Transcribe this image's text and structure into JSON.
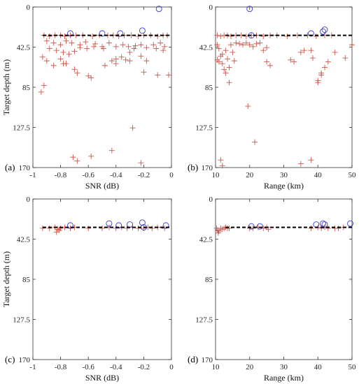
{
  "chart_data": [
    {
      "type": "scatter",
      "panel_label": "(a)",
      "xlabel": "SNR (dB)",
      "ylabel": "Target depth (m)",
      "xlim": [
        -1,
        0
      ],
      "ylim": [
        0,
        170
      ],
      "y_inverted": true,
      "xticks": [
        -1,
        -0.8,
        -0.6,
        -0.4,
        -0.2,
        0
      ],
      "xtick_labels": [
        "-1",
        "-0.8",
        "-0.6",
        "-0.4",
        "-0.2",
        "0"
      ],
      "yticks": [
        0,
        42.5,
        85,
        127.5,
        170
      ],
      "ytick_labels": [
        "0",
        "42.5",
        "85",
        "127.5",
        "170"
      ],
      "reference_line": 30,
      "grid": false,
      "series": [
        {
          "marker": "plus",
          "color": "#c0392b",
          "points": [
            [
              -0.92,
              30
            ],
            [
              -0.88,
              31
            ],
            [
              -0.84,
              30
            ],
            [
              -0.8,
              30
            ],
            [
              -0.77,
              31
            ],
            [
              -0.73,
              30
            ],
            [
              -0.69,
              30
            ],
            [
              -0.64,
              30
            ],
            [
              -0.57,
              31
            ],
            [
              -0.52,
              30
            ],
            [
              -0.46,
              30
            ],
            [
              -0.42,
              30
            ],
            [
              -0.38,
              31
            ],
            [
              -0.34,
              30
            ],
            [
              -0.29,
              30
            ],
            [
              -0.24,
              31
            ],
            [
              -0.2,
              30
            ],
            [
              -0.15,
              30
            ],
            [
              -0.1,
              31
            ],
            [
              -0.06,
              30
            ],
            [
              -0.03,
              30
            ],
            [
              -0.9,
              36
            ],
            [
              -0.85,
              38
            ],
            [
              -0.8,
              40
            ],
            [
              -0.76,
              36
            ],
            [
              -0.72,
              38
            ],
            [
              -0.66,
              40
            ],
            [
              -0.62,
              37
            ],
            [
              -0.55,
              39
            ],
            [
              -0.5,
              42
            ],
            [
              -0.45,
              38
            ],
            [
              -0.4,
              42
            ],
            [
              -0.35,
              40
            ],
            [
              -0.31,
              42
            ],
            [
              -0.26,
              41
            ],
            [
              -0.22,
              40
            ],
            [
              -0.18,
              43
            ],
            [
              -0.13,
              40
            ],
            [
              -0.08,
              38
            ],
            [
              -0.05,
              42
            ],
            [
              -0.88,
              44
            ],
            [
              -0.83,
              46
            ],
            [
              -0.78,
              48
            ],
            [
              -0.74,
              50
            ],
            [
              -0.7,
              47
            ],
            [
              -0.66,
              43
            ],
            [
              -0.61,
              44
            ],
            [
              -0.56,
              42
            ],
            [
              -0.49,
              44
            ],
            [
              -0.43,
              57
            ],
            [
              -0.4,
              55
            ],
            [
              -0.36,
              53
            ],
            [
              -0.33,
              56
            ],
            [
              -0.3,
              48
            ],
            [
              -0.27,
              44
            ],
            [
              -0.22,
              52
            ],
            [
              -0.18,
              57
            ],
            [
              -0.11,
              44
            ],
            [
              -0.06,
              46
            ],
            [
              -0.93,
              53
            ],
            [
              -0.9,
              57
            ],
            [
              -0.85,
              62
            ],
            [
              -0.8,
              55
            ],
            [
              -0.76,
              60
            ],
            [
              -0.7,
              66
            ],
            [
              -0.6,
              73
            ],
            [
              -0.58,
              75
            ],
            [
              -0.48,
              62
            ],
            [
              -0.4,
              60
            ],
            [
              -0.3,
              57
            ],
            [
              -0.2,
              69
            ],
            [
              -0.1,
              72
            ],
            [
              -0.02,
              72
            ],
            [
              -0.94,
              90
            ],
            [
              -0.78,
              60
            ],
            [
              -0.68,
              70
            ],
            [
              -0.28,
              128
            ],
            [
              -0.71,
              159
            ],
            [
              -0.68,
              163
            ],
            [
              -0.58,
              158
            ],
            [
              -0.43,
              152
            ],
            [
              -0.22,
              165
            ],
            [
              -0.92,
              83
            ]
          ]
        },
        {
          "marker": "circle",
          "color": "#3a3ad0",
          "points": [
            [
              -0.73,
              28
            ],
            [
              -0.5,
              28
            ],
            [
              -0.37,
              28
            ],
            [
              -0.21,
              25
            ],
            [
              -0.09,
              2
            ]
          ]
        }
      ]
    },
    {
      "type": "scatter",
      "panel_label": "(b)",
      "xlabel": "Range (km)",
      "ylabel": "",
      "xlim": [
        10,
        50
      ],
      "ylim": [
        0,
        170
      ],
      "y_inverted": true,
      "xticks": [
        10,
        20,
        30,
        40,
        50
      ],
      "xtick_labels": [
        "10",
        "20",
        "30",
        "40",
        "50"
      ],
      "yticks": [
        0,
        42.5,
        85,
        127.5,
        170
      ],
      "ytick_labels": [
        "0",
        "42.5",
        "85",
        "127.5",
        "170"
      ],
      "reference_line": 30,
      "grid": false,
      "series": [
        {
          "marker": "plus",
          "color": "#c0392b",
          "points": [
            [
              10.5,
              30
            ],
            [
              11.5,
              31
            ],
            [
              12.5,
              30
            ],
            [
              13.5,
              30
            ],
            [
              14.5,
              31
            ],
            [
              16,
              30
            ],
            [
              17.5,
              30
            ],
            [
              19,
              31
            ],
            [
              20.5,
              30
            ],
            [
              22,
              30
            ],
            [
              24,
              31
            ],
            [
              26,
              30
            ],
            [
              28,
              30
            ],
            [
              31,
              31
            ],
            [
              34,
              30
            ],
            [
              37,
              30
            ],
            [
              39.5,
              31
            ],
            [
              42,
              30
            ],
            [
              44,
              30
            ],
            [
              10.5,
              40
            ],
            [
              11,
              44
            ],
            [
              11.5,
              52
            ],
            [
              12,
              60
            ],
            [
              12.5,
              66
            ],
            [
              13,
              46
            ],
            [
              13.5,
              55
            ],
            [
              14,
              80
            ],
            [
              14.5,
              40
            ],
            [
              15,
              48
            ],
            [
              15.5,
              57
            ],
            [
              16,
              38
            ],
            [
              17,
              39
            ],
            [
              18,
              40
            ],
            [
              19,
              38
            ],
            [
              20,
              40
            ],
            [
              21,
              42
            ],
            [
              22,
              39
            ],
            [
              23,
              38
            ],
            [
              24,
              46
            ],
            [
              25,
              43
            ],
            [
              10.5,
              56
            ],
            [
              11,
              58
            ],
            [
              12,
              50
            ],
            [
              13,
              70
            ],
            [
              14,
              64
            ],
            [
              19.5,
              105
            ],
            [
              21.5,
              143
            ],
            [
              25,
              58
            ],
            [
              26,
              62
            ],
            [
              32,
              56
            ],
            [
              33,
              58
            ],
            [
              35,
              48
            ],
            [
              36,
              46
            ],
            [
              38,
              46
            ],
            [
              38.5,
              54
            ],
            [
              40,
              80
            ],
            [
              41,
              72
            ],
            [
              42,
              64
            ],
            [
              43,
              58
            ],
            [
              45,
              48
            ],
            [
              48,
              54
            ],
            [
              50,
              40
            ],
            [
              11.5,
              162
            ],
            [
              12,
              168
            ],
            [
              35,
              166
            ],
            [
              38,
              162
            ],
            [
              40,
              78
            ],
            [
              41,
              70
            ]
          ]
        },
        {
          "marker": "circle",
          "color": "#3a3ad0",
          "points": [
            [
              20,
              2
            ],
            [
              20.5,
              30
            ],
            [
              38,
              28
            ],
            [
              41.5,
              26
            ],
            [
              42,
              24
            ]
          ]
        }
      ]
    },
    {
      "type": "scatter",
      "panel_label": "(c)",
      "xlabel": "SNR (dB)",
      "ylabel": "Target depth (m)",
      "xlim": [
        -1,
        0
      ],
      "ylim": [
        0,
        170
      ],
      "y_inverted": true,
      "xticks": [
        -1,
        -0.8,
        -0.6,
        -0.4,
        -0.2,
        0
      ],
      "xtick_labels": [
        "-1",
        "-0.8",
        "-0.6",
        "-0.4",
        "-0.2",
        "0"
      ],
      "yticks": [
        0,
        42.5,
        85,
        127.5,
        170
      ],
      "ytick_labels": [
        "0",
        "42.5",
        "85",
        "127.5",
        "170"
      ],
      "reference_line": 30,
      "grid": false,
      "series": [
        {
          "marker": "plus",
          "color": "#c0392b",
          "points": [
            [
              -0.93,
              31
            ],
            [
              -0.88,
              31
            ],
            [
              -0.84,
              30
            ],
            [
              -0.82,
              32
            ],
            [
              -0.8,
              31
            ],
            [
              -0.77,
              30
            ],
            [
              -0.73,
              31
            ],
            [
              -0.7,
              30
            ],
            [
              -0.6,
              31
            ],
            [
              -0.5,
              31
            ],
            [
              -0.45,
              30
            ],
            [
              -0.4,
              31
            ],
            [
              -0.36,
              30
            ],
            [
              -0.32,
              31
            ],
            [
              -0.28,
              30
            ],
            [
              -0.24,
              31
            ],
            [
              -0.2,
              31
            ],
            [
              -0.17,
              30
            ],
            [
              -0.14,
              31
            ],
            [
              -0.1,
              30
            ],
            [
              -0.05,
              31
            ],
            [
              -0.83,
              35
            ],
            [
              -0.81,
              33
            ]
          ]
        },
        {
          "marker": "circle",
          "color": "#3a3ad0",
          "points": [
            [
              -0.73,
              28
            ],
            [
              -0.45,
              26
            ],
            [
              -0.38,
              28
            ],
            [
              -0.3,
              27
            ],
            [
              -0.21,
              25
            ],
            [
              -0.2,
              30
            ],
            [
              -0.04,
              28
            ]
          ]
        }
      ]
    },
    {
      "type": "scatter",
      "panel_label": "(d)",
      "xlabel": "Range (km)",
      "ylabel": "",
      "xlim": [
        10,
        50
      ],
      "ylim": [
        0,
        170
      ],
      "y_inverted": true,
      "xticks": [
        10,
        20,
        30,
        40,
        50
      ],
      "xtick_labels": [
        "10",
        "20",
        "30",
        "40",
        "50"
      ],
      "yticks": [
        0,
        42.5,
        85,
        127.5,
        170
      ],
      "ytick_labels": [
        "0",
        "42.5",
        "85",
        "127.5",
        "170"
      ],
      "reference_line": 30,
      "grid": false,
      "series": [
        {
          "marker": "plus",
          "color": "#c0392b",
          "points": [
            [
              10.3,
              31
            ],
            [
              10.6,
              33
            ],
            [
              10.8,
              36
            ],
            [
              11,
              34
            ],
            [
              11.5,
              31
            ],
            [
              12,
              32
            ],
            [
              12.5,
              31
            ],
            [
              13,
              30
            ],
            [
              13.5,
              31
            ],
            [
              14,
              31
            ],
            [
              20,
              31
            ],
            [
              21,
              31
            ],
            [
              22.5,
              30
            ],
            [
              24,
              31
            ],
            [
              25,
              30
            ],
            [
              25.5,
              32
            ],
            [
              38,
              31
            ],
            [
              40,
              30
            ],
            [
              41,
              31
            ],
            [
              42,
              30
            ],
            [
              43,
              31
            ],
            [
              45,
              31
            ],
            [
              46,
              31
            ],
            [
              47.5,
              30
            ]
          ]
        },
        {
          "marker": "circle",
          "color": "#3a3ad0",
          "points": [
            [
              20.5,
              29
            ],
            [
              23,
              29
            ],
            [
              39.5,
              27
            ],
            [
              41.5,
              26
            ],
            [
              42,
              27
            ],
            [
              49.5,
              26
            ]
          ]
        }
      ]
    }
  ]
}
